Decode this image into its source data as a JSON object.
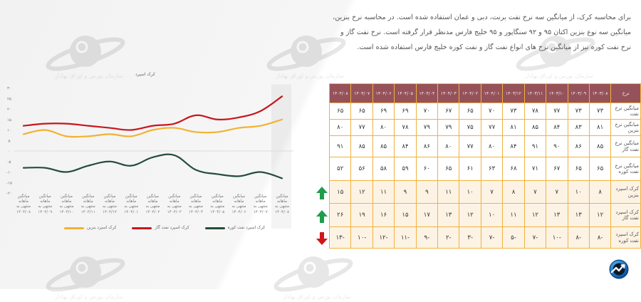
{
  "intro": {
    "lines": [
      "برای محاسبه کرک، از میانگین سه نرخ نفت برنت، دبی و عمان استفاده شده است. در محاسبه نرخ بنزین،",
      "میانگین سه نوع بنزین اکتان ۹۵ و ۹۲ سنگاپور و ۹۵ خلیج فارس مدنظر قرار گرفته است. نرخ نفت گاز و",
      "نرخ نفت کوره نیز از میانگین نرخ های انواع نفت گاز و نفت کوره خلیج فارس استفاده شده است."
    ]
  },
  "watermark": {
    "text": "سازمان بورس و اوراق بهادار"
  },
  "table": {
    "header_label": "نرخ",
    "columns": [
      "۱۴۰۳/۰۸",
      "۱۴۰۳/۰۹",
      "۱۴۰۳/۱۰",
      "۱۴۰۳/۱۱",
      "۱۴۰۳/۱۲",
      "۱۴۰۴/۰۱",
      "۱۴۰۴/۰۲",
      "۱۴۰۴/۰۳",
      "۱۴۰۴/۰۴",
      "۱۴۰۴/۰۵",
      "۱۴۰۴/۰۶",
      "۱۴۰۴/۰۷",
      "۱۴۰۴/۰۸"
    ],
    "rows": [
      {
        "label": "میانگین نرخ نفت",
        "values": [
          "۷۳",
          "۷۳",
          "۷۷",
          "۷۸",
          "۷۳",
          "۷۰",
          "۶۵",
          "۶۷",
          "۷۰",
          "۶۹",
          "۶۹",
          "۶۵",
          "۶۵"
        ]
      },
      {
        "label": "میانگین نرخ بنزین",
        "values": [
          "۸۱",
          "۸۳",
          "۸۴",
          "۸۵",
          "۸۱",
          "۷۷",
          "۷۵",
          "۷۹",
          "۷۹",
          "۷۸",
          "۸۰",
          "۷۷",
          "۸۰"
        ]
      },
      {
        "label": "میانگین نرخ نفت گاز",
        "values": [
          "۸۵",
          "۸۶",
          "۹۰",
          "۹۱",
          "۸۴",
          "۸۰",
          "۷۷",
          "۸۰",
          "۸۶",
          "۸۴",
          "۸۵",
          "۸۵",
          "۹۱"
        ]
      },
      {
        "label": "میانگین نرخ نفت کوره",
        "values": [
          "۶۵",
          "۶۵",
          "۶۷",
          "۷۱",
          "۶۸",
          "۶۳",
          "۶۱",
          "۶۵",
          "۶۰",
          "۵۹",
          "۵۸",
          "۵۶",
          "۵۲"
        ]
      },
      {
        "label": "کرک اسپرد بنزین",
        "values": [
          "۸",
          "۱۰",
          "۷",
          "۷",
          "۸",
          "۷",
          "۱۰",
          "۱۱",
          "۹",
          "۹",
          "۱۱",
          "۱۲",
          "۱۵"
        ],
        "trend": "up",
        "trend_color": "#1e9e4a"
      },
      {
        "label": "کرک اسپرد نفت گاز",
        "values": [
          "۱۲",
          "۱۳",
          "۱۳",
          "۱۲",
          "۱۱",
          "۱۰",
          "۱۲",
          "۱۳",
          "۱۷",
          "۱۵",
          "۱۶",
          "۱۹",
          "۲۶"
        ],
        "trend": "up",
        "trend_color": "#1e9e4a"
      },
      {
        "label": "کرک اسپرد نفت کوره",
        "values": [
          "-۸",
          "-۸",
          "-۱۰",
          "-۷",
          "-۵",
          "-۷",
          "-۳",
          "-۲",
          "-۹",
          "-۱۱",
          "-۱۲",
          "-۱۰",
          "-۱۳"
        ],
        "trend": "down",
        "trend_color": "#d0161b"
      }
    ],
    "colors": {
      "header_bg": "#96525a",
      "border": "#f0b23e",
      "crack_bg": "#fdf3e4"
    }
  },
  "chart_data": {
    "type": "line",
    "title": "کرک اسپرد",
    "xlabel": "",
    "ylabel": "",
    "categories": [
      "میانگین ماهانه منتهی به ۱۴۰۳/۰۸",
      "میانگین ماهانه منتهی به ۱۴۰۳/۰۹",
      "میانگین ماهانه منتهی به ۱۴۰۳/۱۰",
      "میانگین ماهانه منتهی به ۱۴۰۳/۱۱",
      "میانگین ماهانه منتهی به ۱۴۰۳/۱۲",
      "میانگین ماهانه منتهی به ۱۴۰۴/۰۱",
      "میانگین ماهانه منتهی به ۱۴۰۴/۰۲",
      "میانگین ماهانه منتهی به ۱۴۰۴/۰۳",
      "میانگین ماهانه منتهی به ۱۴۰۴/۰۴",
      "میانگین ماهانه منتهی به ۱۴۰۴/۰۵",
      "میانگین ماهانه منتهی به ۱۴۰۴/۰۶",
      "میانگین ماهانه منتهی به ۱۴۰۴/۰۷",
      "میانگین ماهانه منتهی به ۱۴۰۴/۰۸"
    ],
    "category_lines": [
      [
        "میانگین",
        "ماهانه",
        "منتهی به",
        "۱۴۰۳/۰۸"
      ],
      [
        "میانگین",
        "ماهانه",
        "منتهی به",
        "۱۴۰۳/۰۹"
      ],
      [
        "میانگین",
        "ماهانه",
        "منتهی به",
        "۱۴۰۳/۱۰"
      ],
      [
        "میانگین",
        "ماهانه",
        "منتهی به",
        "۱۴۰۳/۱۱"
      ],
      [
        "میانگین",
        "ماهانه",
        "منتهی به",
        "۱۴۰۳/۱۲"
      ],
      [
        "میانگین",
        "ماهانه",
        "منتهی به",
        "۱۴۰۴/۰۱"
      ],
      [
        "میانگین",
        "ماهانه",
        "منتهی به",
        "۱۴۰۴/۰۲"
      ],
      [
        "میانگین",
        "ماهانه",
        "منتهی به",
        "۱۴۰۴/۰۳"
      ],
      [
        "میانگین",
        "ماهانه",
        "منتهی به",
        "۱۴۰۴/۰۴"
      ],
      [
        "میانگین",
        "ماهانه",
        "منتهی به",
        "۱۴۰۴/۰۵"
      ],
      [
        "میانگین",
        "ماهانه",
        "منتهی به",
        "۱۴۰۴/۰۶"
      ],
      [
        "میانگین",
        "ماهانه",
        "منتهی به",
        "۱۴۰۴/۰۷"
      ],
      [
        "میانگین",
        "ماهانه",
        "منتهی به",
        "۱۴۰۴/۰۸"
      ]
    ],
    "series": [
      {
        "name": "کرک اسپرد بنزین",
        "color": "#f2b233",
        "values": [
          8,
          10,
          7,
          7,
          8,
          7,
          10,
          11,
          9,
          9,
          11,
          12,
          15
        ]
      },
      {
        "name": "کرک اسپرد نفت گاز",
        "color": "#c8161d",
        "values": [
          12,
          13,
          13,
          12,
          11,
          10,
          12,
          13,
          17,
          15,
          16,
          19,
          26
        ]
      },
      {
        "name": "کرک اسپرد نفت کوره",
        "color": "#254d3a",
        "values": [
          -8,
          -8,
          -10,
          -7,
          -5,
          -7,
          -3,
          -2,
          -9,
          -11,
          -12,
          -10,
          -13
        ]
      }
    ],
    "yticks": [
      30,
      25,
      20,
      15,
      10,
      5,
      0,
      -5,
      -10,
      -15,
      -20
    ],
    "ytick_labels": [
      "۳۰",
      "۲۵",
      "۲۰",
      "۱۵",
      "۱۰",
      "۵",
      "۰",
      "-۵",
      "-۱۰",
      "-۱۵",
      "-۲۰"
    ],
    "ylim": [
      -20,
      30
    ],
    "grid": false,
    "zero_line": true,
    "highlight_category": 12,
    "legend_position": "bottom"
  }
}
